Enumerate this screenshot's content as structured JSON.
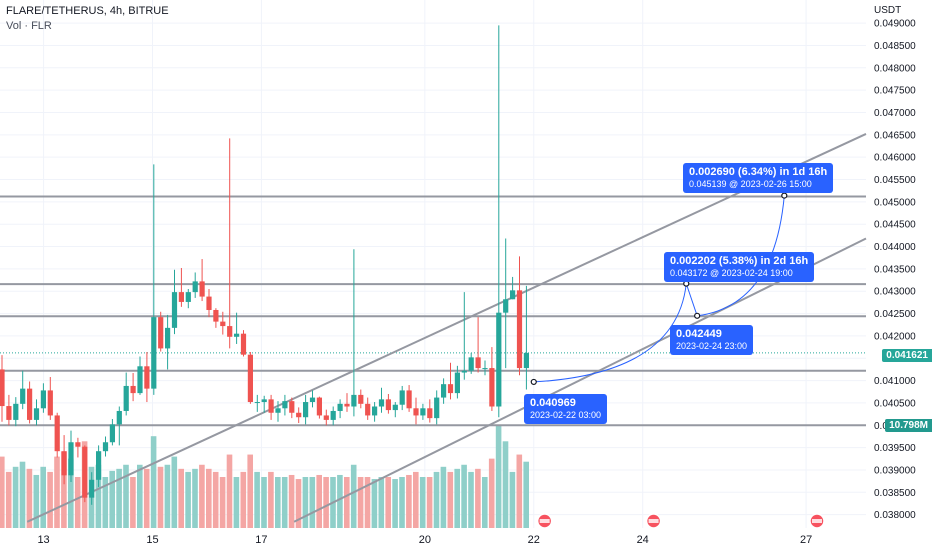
{
  "header": {
    "symbol_line": "FLARE/TETHERUS, 4h, BITRUE",
    "volume_line": "Vol · FLR"
  },
  "colors": {
    "up": "#26a69a",
    "down": "#ef5350",
    "vol_up": "#8fcfc9",
    "vol_down": "#f4a6a4",
    "annotation": "#2962ff",
    "level_line": "#9598a1",
    "trend_line": "#9598a1",
    "price_tag": "#26a69a",
    "volume_tag": "#22998e"
  },
  "chart_data": {
    "type": "candlestick",
    "price_axis_unit": "USDT",
    "y_ticks": [
      "0.049000",
      "0.048500",
      "0.048000",
      "0.047500",
      "0.047000",
      "0.046500",
      "0.046000",
      "0.045500",
      "0.045000",
      "0.044500",
      "0.044000",
      "0.043500",
      "0.043000",
      "0.042500",
      "0.042000",
      "0.041500",
      "0.041000",
      "0.040500",
      "0.040000",
      "0.039500",
      "0.039000",
      "0.038500",
      "0.038000"
    ],
    "x_ticks": [
      {
        "label": "13",
        "day": 13
      },
      {
        "label": "15",
        "day": 15
      },
      {
        "label": "17",
        "day": 17
      },
      {
        "label": "20",
        "day": 20
      },
      {
        "label": "22",
        "day": 22
      },
      {
        "label": "24",
        "day": 24
      },
      {
        "label": "27",
        "day": 27
      }
    ],
    "x_range_days": [
      12.2,
      28.1
    ],
    "y_range": [
      0.03788,
      0.04907
    ],
    "current_price": "0.041621",
    "current_volume": "10.798M",
    "levels": [
      0.04512,
      0.04316,
      0.04244,
      0.04122,
      0.04
    ],
    "trend_lines": [
      {
        "from": {
          "day": 12.7,
          "price": 0.03784
        },
        "to": {
          "day": 28.1,
          "price": 0.04652
        }
      },
      {
        "from": {
          "day": 17.6,
          "price": 0.03784
        },
        "to": {
          "day": 28.1,
          "price": 0.04418
        }
      }
    ],
    "projection": [
      {
        "day": 22.0,
        "price": 0.04097
      },
      {
        "day": 24.8,
        "price": 0.04317
      },
      {
        "day": 25.0,
        "price": 0.04245
      },
      {
        "day": 26.6,
        "price": 0.04514
      }
    ],
    "annotations": [
      {
        "line1": "0.040969",
        "line2": "2023-02-22 03:00"
      },
      {
        "line1": "0.042449",
        "line2": "2023-02-24 23:00"
      },
      {
        "line1": "0.002202 (5.38%) in 2d 16h",
        "line2": "0.043172 @ 2023-02-24  19:00"
      },
      {
        "line1": "0.002690 (6.34%) in 1d 16h",
        "line2": "0.045139 @ 2023-02-26  15:00"
      }
    ],
    "event_markers": [
      22.2,
      24.2,
      27.2
    ],
    "candles": [
      [
        0.04125,
        0.04157,
        0.04008,
        0.04043,
        0.7
      ],
      [
        0.04043,
        0.04068,
        0.04,
        0.04012,
        0.55
      ],
      [
        0.04012,
        0.04063,
        0.03998,
        0.04048,
        0.6
      ],
      [
        0.04048,
        0.04122,
        0.04036,
        0.04082,
        0.65
      ],
      [
        0.04082,
        0.04098,
        0.04004,
        0.04012,
        0.58
      ],
      [
        0.04012,
        0.04058,
        0.04,
        0.04038,
        0.52
      ],
      [
        0.04038,
        0.04094,
        0.04028,
        0.04078,
        0.6
      ],
      [
        0.04078,
        0.04108,
        0.04012,
        0.04022,
        0.55
      ],
      [
        0.04022,
        0.04028,
        0.03928,
        0.03942,
        0.7
      ],
      [
        0.03942,
        0.03978,
        0.03868,
        0.03888,
        0.75
      ],
      [
        0.03888,
        0.03988,
        0.03873,
        0.03962,
        0.68
      ],
      [
        0.03962,
        0.03972,
        0.03928,
        0.03952,
        0.5
      ],
      [
        0.03952,
        0.03955,
        0.03828,
        0.03838,
        0.85
      ],
      [
        0.03838,
        0.03895,
        0.03822,
        0.03878,
        0.6
      ],
      [
        0.03878,
        0.03955,
        0.03862,
        0.03942,
        0.62
      ],
      [
        0.03942,
        0.03975,
        0.0393,
        0.03962,
        0.5
      ],
      [
        0.03962,
        0.04014,
        0.03955,
        0.04002,
        0.56
      ],
      [
        0.04002,
        0.04042,
        0.03955,
        0.04032,
        0.58
      ],
      [
        0.04032,
        0.04118,
        0.04022,
        0.04088,
        0.62
      ],
      [
        0.04088,
        0.04117,
        0.04054,
        0.04072,
        0.5
      ],
      [
        0.04072,
        0.04154,
        0.04068,
        0.04132,
        0.62
      ],
      [
        0.04132,
        0.04164,
        0.04052,
        0.04082,
        0.58
      ],
      [
        0.04082,
        0.04584,
        0.04068,
        0.04242,
        0.9
      ],
      [
        0.04242,
        0.04254,
        0.04165,
        0.04172,
        0.6
      ],
      [
        0.04172,
        0.04247,
        0.04125,
        0.04218,
        0.62
      ],
      [
        0.04218,
        0.04348,
        0.04204,
        0.04298,
        0.7
      ],
      [
        0.04298,
        0.04352,
        0.04265,
        0.04276,
        0.58
      ],
      [
        0.04276,
        0.04305,
        0.04262,
        0.04298,
        0.55
      ],
      [
        0.04298,
        0.04342,
        0.04285,
        0.04322,
        0.58
      ],
      [
        0.04322,
        0.04372,
        0.04278,
        0.04288,
        0.62
      ],
      [
        0.04288,
        0.04305,
        0.04242,
        0.04258,
        0.58
      ],
      [
        0.04258,
        0.04262,
        0.04218,
        0.04232,
        0.55
      ],
      [
        0.04232,
        0.04254,
        0.04203,
        0.04222,
        0.5
      ],
      [
        0.04222,
        0.04642,
        0.04172,
        0.04198,
        0.72
      ],
      [
        0.04198,
        0.04252,
        0.04182,
        0.04205,
        0.5
      ],
      [
        0.04205,
        0.04213,
        0.04154,
        0.04158,
        0.55
      ],
      [
        0.04158,
        0.04164,
        0.04048,
        0.04052,
        0.72
      ],
      [
        0.04052,
        0.04068,
        0.0403,
        0.04052,
        0.55
      ],
      [
        0.04052,
        0.04066,
        0.04028,
        0.04058,
        0.5
      ],
      [
        0.04058,
        0.04068,
        0.04012,
        0.04028,
        0.55
      ],
      [
        0.04028,
        0.04054,
        0.04008,
        0.04038,
        0.5
      ],
      [
        0.04038,
        0.04068,
        0.04022,
        0.04054,
        0.5
      ],
      [
        0.04054,
        0.04062,
        0.04016,
        0.04028,
        0.52
      ],
      [
        0.04028,
        0.0404,
        0.04005,
        0.04018,
        0.48
      ],
      [
        0.04018,
        0.04068,
        0.04002,
        0.04052,
        0.5
      ],
      [
        0.04052,
        0.04078,
        0.0404,
        0.04062,
        0.5
      ],
      [
        0.04062,
        0.04064,
        0.04015,
        0.04022,
        0.52
      ],
      [
        0.04022,
        0.04035,
        0.04,
        0.04012,
        0.5
      ],
      [
        0.04012,
        0.04042,
        0.04,
        0.04032,
        0.5
      ],
      [
        0.04032,
        0.04058,
        0.04016,
        0.04048,
        0.52
      ],
      [
        0.04048,
        0.04072,
        0.0403,
        0.04042,
        0.5
      ],
      [
        0.04042,
        0.04394,
        0.0402,
        0.04068,
        0.62
      ],
      [
        0.04068,
        0.0408,
        0.04038,
        0.04048,
        0.5
      ],
      [
        0.04048,
        0.04062,
        0.04012,
        0.04022,
        0.5
      ],
      [
        0.04022,
        0.04052,
        0.04008,
        0.04042,
        0.48
      ],
      [
        0.04042,
        0.04084,
        0.04028,
        0.04058,
        0.5
      ],
      [
        0.04058,
        0.0407,
        0.04026,
        0.04034,
        0.5
      ],
      [
        0.04034,
        0.04052,
        0.04018,
        0.04046,
        0.48
      ],
      [
        0.04046,
        0.04088,
        0.04034,
        0.04078,
        0.5
      ],
      [
        0.04078,
        0.0409,
        0.0403,
        0.04038,
        0.52
      ],
      [
        0.04038,
        0.04062,
        0.04002,
        0.04022,
        0.55
      ],
      [
        0.04022,
        0.04048,
        0.04012,
        0.04038,
        0.5
      ],
      [
        0.04038,
        0.04058,
        0.04006,
        0.04016,
        0.5
      ],
      [
        0.04016,
        0.04078,
        0.04002,
        0.04062,
        0.55
      ],
      [
        0.04062,
        0.04105,
        0.04048,
        0.04092,
        0.6
      ],
      [
        0.04092,
        0.0414,
        0.04058,
        0.04072,
        0.55
      ],
      [
        0.04072,
        0.04133,
        0.0406,
        0.04118,
        0.58
      ],
      [
        0.04118,
        0.04298,
        0.04102,
        0.04122,
        0.62
      ],
      [
        0.04122,
        0.04162,
        0.04115,
        0.04152,
        0.55
      ],
      [
        0.04152,
        0.04242,
        0.04118,
        0.04128,
        0.58
      ],
      [
        0.04128,
        0.04145,
        0.04112,
        0.04128,
        0.5
      ],
      [
        0.04128,
        0.04175,
        0.04032,
        0.04042,
        0.68
      ],
      [
        0.04042,
        0.04895,
        0.04018,
        0.04252,
        1.0
      ],
      [
        0.04252,
        0.04418,
        0.04128,
        0.04282,
        0.85
      ],
      [
        0.04282,
        0.04332,
        0.04282,
        0.04302,
        0.55
      ],
      [
        0.04302,
        0.04378,
        0.04112,
        0.04128,
        0.72
      ],
      [
        0.04128,
        0.04312,
        0.0408,
        0.04162,
        0.65
      ]
    ]
  }
}
